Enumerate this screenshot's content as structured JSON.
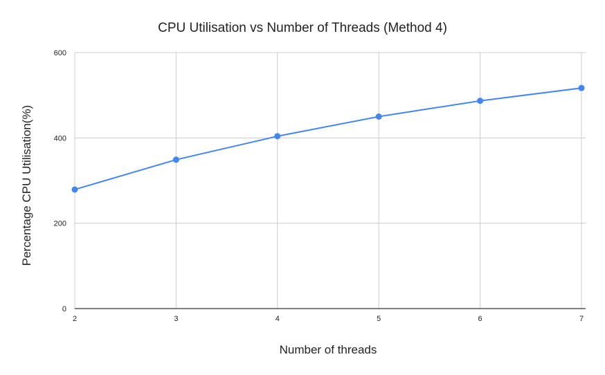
{
  "chart_data": {
    "type": "line",
    "title": "CPU Utilisation vs Number of Threads (Method 4)",
    "xlabel": "Number of threads",
    "ylabel": "Percentage CPU Utilisation(%)",
    "x": [
      2,
      3,
      4,
      5,
      6,
      7
    ],
    "series": [
      {
        "values": [
          279,
          349,
          404,
          450,
          487,
          517
        ],
        "color": "#4285f4"
      }
    ],
    "xlim": [
      2,
      7
    ],
    "ylim": [
      0,
      600
    ],
    "xticks": [
      2,
      3,
      4,
      5,
      6,
      7
    ],
    "yticks": [
      0,
      200,
      400,
      600
    ],
    "grid": true,
    "legend": "none"
  }
}
